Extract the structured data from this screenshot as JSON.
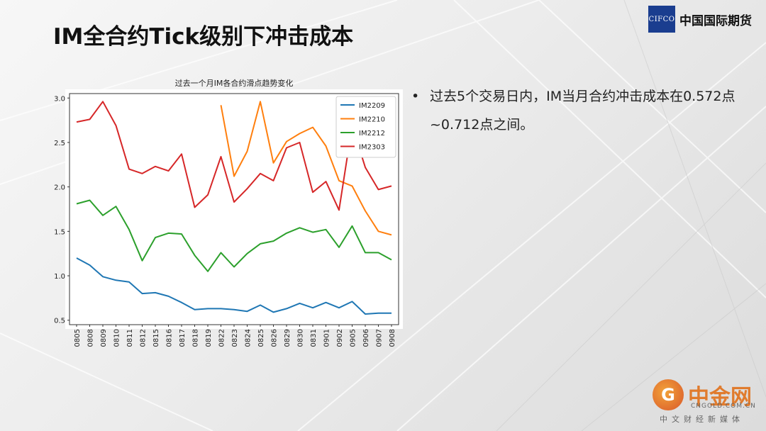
{
  "slide": {
    "title": "IM全合约Tick级别下冲击成本"
  },
  "logo": {
    "mark": "CIFCO",
    "name": "中国国际期货"
  },
  "bullet": {
    "text": "过去5个交易日内，IM当月合约冲击成本在0.572点~0.712点之间。"
  },
  "watermark": {
    "icon": "G",
    "name": "中金网",
    "domain": "CNGOLD.COM.CN",
    "sub": "中文财经新媒体"
  },
  "chart_data": {
    "type": "line",
    "title": "过去一个月IM各合约滑点趋势变化",
    "xlabel": "",
    "ylabel": "",
    "ylim": [
      0.45,
      3.05
    ],
    "yticks": [
      "0.5",
      "1.0",
      "1.5",
      "2.0",
      "2.5",
      "3.0"
    ],
    "ytick_values": [
      0.5,
      1.0,
      1.5,
      2.0,
      2.5,
      3.0
    ],
    "grid": false,
    "legend_position": "top-right",
    "categories": [
      "0805",
      "0808",
      "0809",
      "0810",
      "0811",
      "0812",
      "0815",
      "0816",
      "0817",
      "0818",
      "0819",
      "0822",
      "0823",
      "0824",
      "0825",
      "0826",
      "0829",
      "0830",
      "0831",
      "0901",
      "0902",
      "0905",
      "0906",
      "0907",
      "0908"
    ],
    "series": [
      {
        "name": "IM2209",
        "color": "#1f77b4",
        "values": [
          1.2,
          1.12,
          0.99,
          0.95,
          0.93,
          0.8,
          0.81,
          0.77,
          0.7,
          0.62,
          0.63,
          0.63,
          0.62,
          0.6,
          0.67,
          0.59,
          0.63,
          0.69,
          0.64,
          0.7,
          0.64,
          0.71,
          0.57,
          0.58,
          0.58
        ]
      },
      {
        "name": "IM2210",
        "color": "#ff7f0e",
        "values": [
          null,
          null,
          null,
          null,
          null,
          null,
          null,
          null,
          null,
          null,
          null,
          2.92,
          2.12,
          2.4,
          2.96,
          2.27,
          2.51,
          2.6,
          2.67,
          2.46,
          2.07,
          2.01,
          1.73,
          1.5,
          1.46
        ]
      },
      {
        "name": "IM2212",
        "color": "#2ca02c",
        "values": [
          1.81,
          1.85,
          1.68,
          1.78,
          1.52,
          1.17,
          1.43,
          1.48,
          1.47,
          1.23,
          1.05,
          1.26,
          1.1,
          1.25,
          1.36,
          1.39,
          1.48,
          1.54,
          1.49,
          1.52,
          1.32,
          1.56,
          1.26,
          1.26,
          1.18
        ]
      },
      {
        "name": "IM2303",
        "color": "#d62728",
        "values": [
          2.73,
          2.76,
          2.96,
          2.69,
          2.2,
          2.15,
          2.23,
          2.18,
          2.37,
          1.77,
          1.91,
          2.34,
          1.83,
          1.98,
          2.15,
          2.07,
          2.44,
          2.5,
          1.94,
          2.06,
          1.74,
          2.69,
          2.22,
          1.97,
          2.01
        ]
      }
    ]
  }
}
